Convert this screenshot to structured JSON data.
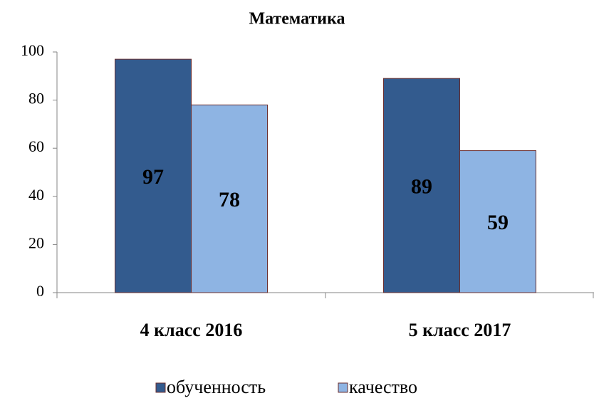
{
  "chart_data": {
    "type": "bar",
    "title": "Математика",
    "categories": [
      "4 класс 2016",
      "5 класс 2017"
    ],
    "series": [
      {
        "name": "обученность",
        "color": "#335b8e",
        "values": [
          97,
          89
        ]
      },
      {
        "name": "качество",
        "color": "#8eb4e3",
        "values": [
          78,
          59
        ]
      }
    ],
    "ylim": [
      0,
      100
    ],
    "yticks": [
      0,
      20,
      40,
      60,
      80,
      100
    ],
    "grid": false,
    "legend": "bottom"
  }
}
